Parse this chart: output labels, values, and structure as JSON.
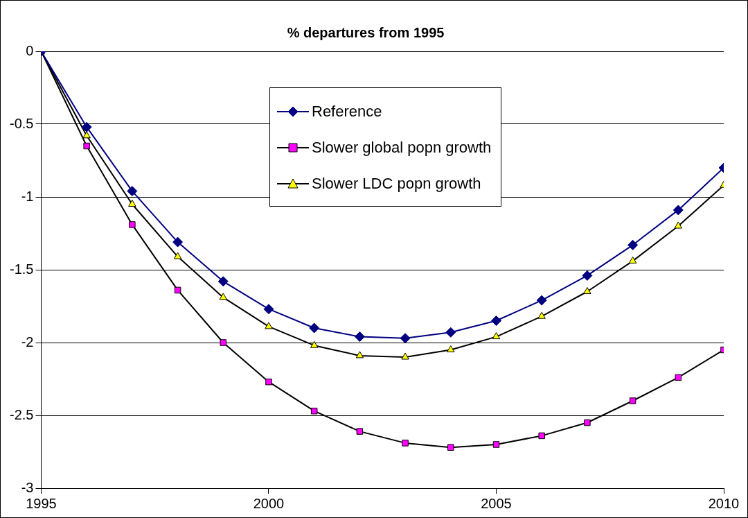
{
  "chart_data": {
    "type": "line",
    "title": "% departures from 1995",
    "x": [
      1995,
      1996,
      1997,
      1998,
      1999,
      2000,
      2001,
      2002,
      2003,
      2004,
      2005,
      2006,
      2007,
      2008,
      2009,
      2010
    ],
    "series": [
      {
        "name": "Reference",
        "color": "#000080",
        "marker": "diamond",
        "values": [
          0,
          -0.52,
          -0.96,
          -1.31,
          -1.58,
          -1.77,
          -1.9,
          -1.96,
          -1.97,
          -1.93,
          -1.85,
          -1.71,
          -1.54,
          -1.33,
          -1.09,
          -0.8
        ]
      },
      {
        "name": "Slower global popn growth",
        "color": "#ff00ff",
        "marker": "square",
        "values": [
          0,
          -0.65,
          -1.19,
          -1.64,
          -2,
          -2.27,
          -2.47,
          -2.61,
          -2.69,
          -2.72,
          -2.7,
          -2.64,
          -2.55,
          -2.4,
          -2.24,
          -2.05
        ]
      },
      {
        "name": "Slower LDC popn growth",
        "color": "#ffff00",
        "marker": "triangle",
        "values": [
          0,
          -0.58,
          -1.05,
          -1.41,
          -1.69,
          -1.89,
          -2.02,
          -2.09,
          -2.1,
          -2.05,
          -1.96,
          -1.82,
          -1.65,
          -1.44,
          -1.2,
          -0.92
        ]
      }
    ],
    "xlim": [
      1995,
      2010
    ],
    "xticks": [
      1995,
      2000,
      2005,
      2010
    ],
    "ylim": [
      -3,
      0
    ],
    "yticks": [
      0,
      -0.5,
      -1,
      -1.5,
      -2,
      -2.5,
      -3
    ],
    "grid": "y",
    "legend": "top",
    "line_style": "solid"
  }
}
